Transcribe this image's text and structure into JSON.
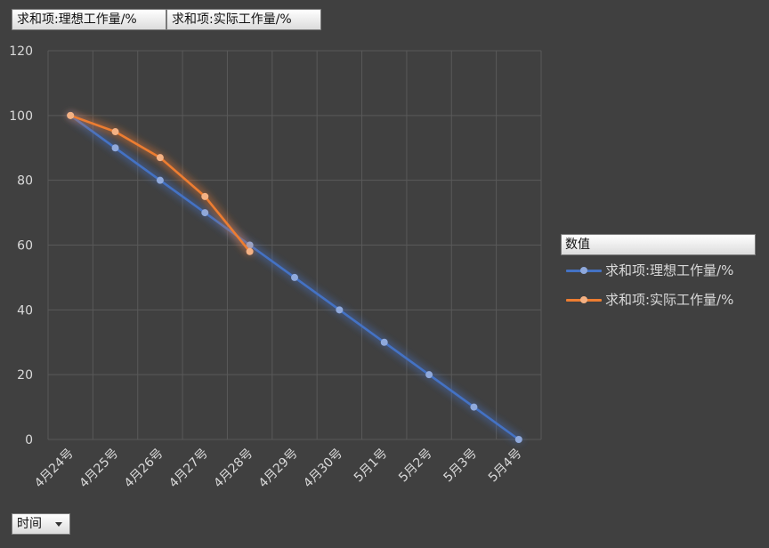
{
  "field_buttons": [
    {
      "label": "求和项:理想工作量/%"
    },
    {
      "label": "求和项:实际工作量/%"
    }
  ],
  "axis_field": {
    "label": "时间"
  },
  "legend": {
    "title": "数值"
  },
  "colors": {
    "background": "#404040",
    "grid": "#595959",
    "ideal": "#4472c4",
    "ideal_marker": "#8fa9dc",
    "actual": "#ed7d31",
    "actual_marker": "#f4b183",
    "tick_text": "#d9d9d9"
  },
  "chart_data": {
    "type": "line",
    "categories": [
      "4月24号",
      "4月25号",
      "4月26号",
      "4月27号",
      "4月28号",
      "4月29号",
      "4月30号",
      "5月1号",
      "5月2号",
      "5月3号",
      "5月4号"
    ],
    "series": [
      {
        "name": "求和项:理想工作量/%",
        "values": [
          100,
          90,
          80,
          70,
          60,
          50,
          40,
          30,
          20,
          10,
          0
        ]
      },
      {
        "name": "求和项:实际工作量/%",
        "values": [
          100,
          95,
          87,
          75,
          58,
          null,
          null,
          null,
          null,
          null,
          null
        ]
      }
    ],
    "ylim": [
      0,
      120
    ],
    "yticks": [
      "0",
      "20",
      "40",
      "60",
      "80",
      "100",
      "120"
    ],
    "grid": true,
    "legend_position": "right"
  }
}
